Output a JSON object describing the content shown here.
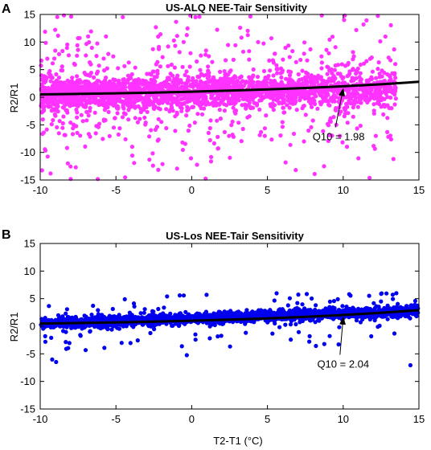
{
  "chart_data": [
    {
      "type": "scatter",
      "panel_letter": "A",
      "title": "US-ALQ NEE-Tair Sensitivity",
      "xlabel": "",
      "ylabel": "R2/R1",
      "xlim": [
        -10,
        15
      ],
      "ylim": [
        -15,
        15
      ],
      "xticks": [
        -10,
        -5,
        0,
        5,
        10,
        15
      ],
      "yticks": [
        -15,
        -10,
        -5,
        0,
        5,
        10,
        15
      ],
      "grid": false,
      "point_color": "#ff33ff",
      "fit_color": "#000000",
      "scatter_summary": {
        "x_range": [
          -10,
          13.5
        ],
        "dense_band_center": [
          0.5,
          1.5
        ],
        "dense_band_halfwidth": 2.5,
        "outer_spread": [
          -15,
          15
        ]
      },
      "fit_curve": {
        "name": "Q10 fit",
        "x": [
          -10,
          -7.5,
          -5,
          -2.5,
          0,
          2.5,
          5,
          7.5,
          10,
          12.5,
          15
        ],
        "y": [
          0.51,
          0.59,
          0.71,
          0.84,
          1.0,
          1.19,
          1.41,
          1.67,
          1.98,
          2.35,
          2.79
        ]
      },
      "annotation": {
        "text": "Q10 = 1.98",
        "arrow_to": [
          10,
          1.98
        ],
        "text_at": [
          9.7,
          -7.8
        ]
      }
    },
    {
      "type": "scatter",
      "panel_letter": "B",
      "title": "US-Los NEE-Tair Sensitivity",
      "xlabel": "T2-T1 (°C)",
      "ylabel": "R2/R1",
      "xlim": [
        -10,
        15
      ],
      "ylim": [
        -15,
        15
      ],
      "xticks": [
        -10,
        -5,
        0,
        5,
        10,
        15
      ],
      "yticks": [
        -15,
        -10,
        -5,
        0,
        5,
        10,
        15
      ],
      "grid": false,
      "point_color": "#0000ee",
      "fit_color": "#000000",
      "scatter_summary": {
        "x_range": [
          -10,
          15
        ],
        "dense_band_center": [
          0.4,
          2.8
        ],
        "dense_band_halfwidth": 0.8,
        "outer_spread": [
          -9,
          6
        ]
      },
      "fit_curve": {
        "name": "Q10 fit",
        "x": [
          -10,
          -7.5,
          -5,
          -2.5,
          0,
          2.5,
          5,
          7.5,
          10,
          12.5,
          15
        ],
        "y": [
          0.49,
          0.58,
          0.7,
          0.84,
          1.0,
          1.2,
          1.43,
          1.7,
          2.04,
          2.43,
          2.91
        ]
      },
      "annotation": {
        "text": "Q10 = 2.04",
        "arrow_to": [
          10,
          2.04
        ],
        "text_at": [
          10.0,
          -7.5
        ]
      }
    }
  ]
}
